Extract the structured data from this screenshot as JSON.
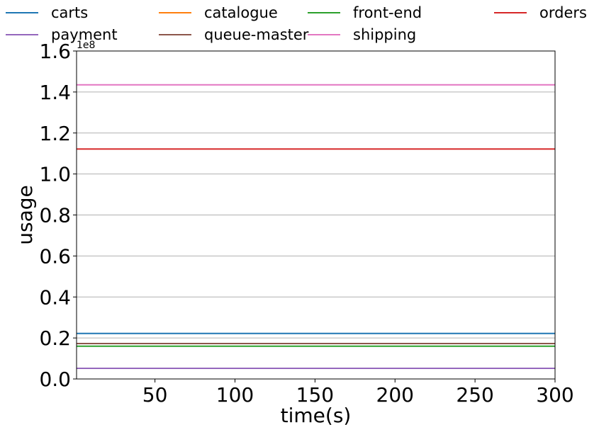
{
  "chart_data": {
    "type": "line",
    "title": "",
    "xlabel": "time(s)",
    "ylabel": "usage",
    "y_offset_label": "1e8",
    "xlim": [
      1,
      300
    ],
    "ylim": [
      0,
      1.6
    ],
    "y_scale_factor": 100000000,
    "x_ticks": [
      50,
      100,
      150,
      200,
      250,
      300
    ],
    "x_tick_labels": [
      "50",
      "100",
      "150",
      "200",
      "250",
      "300"
    ],
    "y_ticks": [
      0.0,
      0.2,
      0.4,
      0.6,
      0.8,
      1.0,
      1.2,
      1.4,
      1.6
    ],
    "y_tick_labels": [
      "0.0",
      "0.2",
      "0.4",
      "0.6",
      "0.8",
      "1.0",
      "1.2",
      "1.4",
      "1.6"
    ],
    "grid": "horizontal",
    "legend_position": "top, outside, 4 columns",
    "x": [
      1,
      300
    ],
    "series": [
      {
        "name": "carts",
        "color": "#1f77b4",
        "values": [
          0.222,
          0.222
        ]
      },
      {
        "name": "catalogue",
        "color": "#ff7f0e",
        "values": [
          0.052,
          0.052
        ]
      },
      {
        "name": "front-end",
        "color": "#2ca02c",
        "values": [
          0.16,
          0.16
        ]
      },
      {
        "name": "orders",
        "color": "#d62728",
        "values": [
          1.122,
          1.122
        ]
      },
      {
        "name": "payment",
        "color": "#9467bd",
        "values": [
          0.052,
          0.052
        ]
      },
      {
        "name": "queue-master",
        "color": "#8c564b",
        "values": [
          0.173,
          0.173
        ]
      },
      {
        "name": "shipping",
        "color": "#e377c2",
        "values": [
          1.435,
          1.435
        ]
      }
    ]
  }
}
